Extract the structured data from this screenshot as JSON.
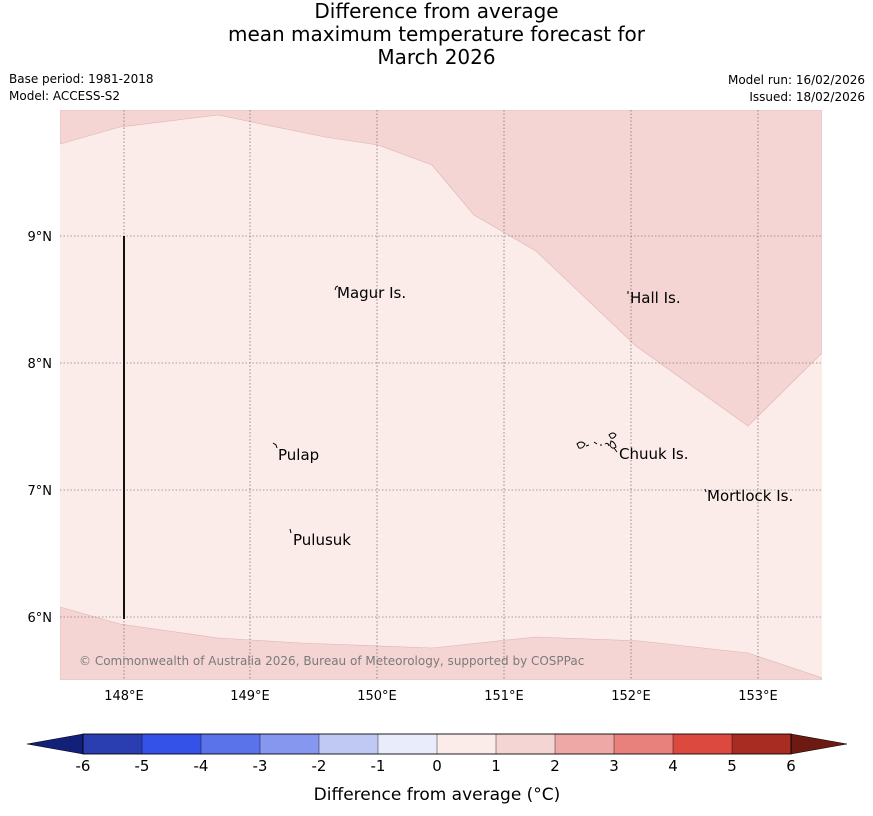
{
  "title": {
    "line1": "Difference from average",
    "line2": "mean maximum temperature forecast for",
    "line3": "March 2026"
  },
  "meta": {
    "base_period": "Base period: 1981-2018",
    "model": "Model: ACCESS-S2",
    "model_run": "Model run: 16/02/2026",
    "issued": "Issued: 18/02/2026"
  },
  "map": {
    "lon_ticks": [
      "148°E",
      "149°E",
      "150°E",
      "151°E",
      "152°E",
      "153°E"
    ],
    "lat_ticks": [
      "9°N",
      "8°N",
      "7°N",
      "6°N"
    ],
    "places": [
      "Magur Is.",
      "Hall Is.",
      "Pulap",
      "Chuuk Is.",
      "Mortlock Is.",
      "Pulusuk"
    ],
    "copyright": "© Commonwealth of Australia 2026, Bureau of Meteorology, supported by COSPPac",
    "fill_colors": {
      "band_0_1": "#fbebe9",
      "band_1_2": "#f5d5d4"
    }
  },
  "colorbar": {
    "ticks": [
      "-6",
      "-5",
      "-4",
      "-3",
      "-2",
      "-1",
      "0",
      "1",
      "2",
      "3",
      "4",
      "5",
      "6"
    ],
    "colors": [
      "#2a3eb1",
      "#3552e8",
      "#5b73ea",
      "#8597ee",
      "#c0c9f4",
      "#e9ecfb",
      "#fbebe9",
      "#f5d5d4",
      "#eea9a7",
      "#e8807b",
      "#dc4a3f",
      "#a82c22"
    ],
    "under_color": "#13207a",
    "over_color": "#6c1a12",
    "label": "Difference from average (°C)"
  }
}
